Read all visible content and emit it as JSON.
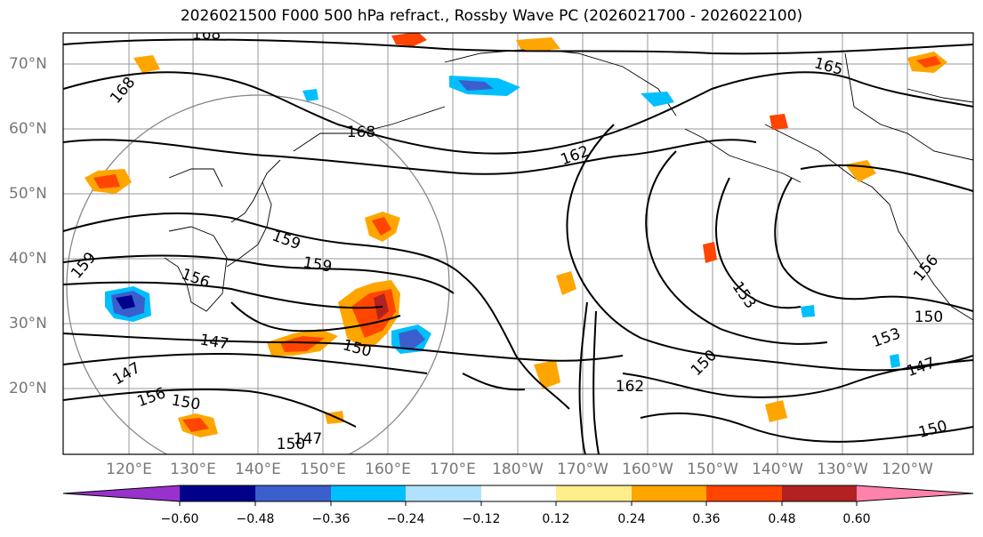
{
  "title": "2026021500 F000 500 hPa refract., Rossby Wave PC (2026021700 - 2026022100)",
  "lat_labels": [
    "70°N",
    "60°N",
    "50°N",
    "40°N",
    "30°N",
    "20°N"
  ],
  "lon_labels": [
    "120°E",
    "130°E",
    "140°E",
    "150°E",
    "160°E",
    "170°E",
    "180°W",
    "170°W",
    "160°W",
    "150°W",
    "140°W",
    "130°W",
    "120°W"
  ],
  "contour_labels": [
    "168",
    "168",
    "168",
    "165",
    "162",
    "159",
    "159",
    "159",
    "156",
    "156",
    "153",
    "153",
    "150",
    "150",
    "150",
    "150",
    "147",
    "147",
    "147",
    "147",
    "156",
    "162",
    "150",
    "150"
  ],
  "colorbar": {
    "ticks": [
      "−0.60",
      "−0.48",
      "−0.36",
      "−0.24",
      "−0.12",
      "0.12",
      "0.24",
      "0.36",
      "0.48",
      "0.60"
    ],
    "colors": [
      "#9932cc",
      "#00008b",
      "#3a5fcd",
      "#00bfff",
      "#b0e2ff",
      "#ffffff",
      "#ffec8b",
      "#ffa500",
      "#ff4500",
      "#b22222",
      "#ff82ab"
    ]
  }
}
